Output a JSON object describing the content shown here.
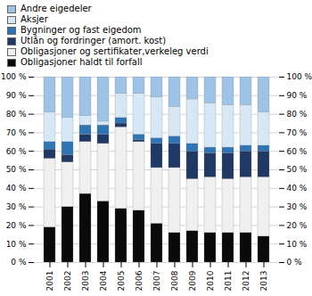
{
  "chart_data": {
    "type": "bar",
    "stacked": true,
    "categories": [
      "2001",
      "2002",
      "2003",
      "2004",
      "2005",
      "2006",
      "2007",
      "2008",
      "2009",
      "2010",
      "2011",
      "2012",
      "2013"
    ],
    "series": [
      {
        "name": "Obligasjoner haldt til forfall",
        "color": "#0a0a0a",
        "values": [
          19,
          30,
          37,
          33,
          29,
          28,
          21,
          16,
          17,
          16,
          16,
          16,
          14
        ]
      },
      {
        "name": "Obligasjoner og sertifikater,verkeleg verdi",
        "color": "#f0f0f0",
        "values": [
          37,
          24,
          28,
          31,
          44,
          37,
          30,
          35,
          28,
          30,
          29,
          30,
          32
        ]
      },
      {
        "name": "Utlån og fordringer (amort. kost)",
        "color": "#1f3864",
        "values": [
          5,
          4,
          4,
          5,
          2,
          1,
          13,
          13,
          15,
          13,
          14,
          14,
          14
        ]
      },
      {
        "name": "Bygninger og fast eigedom",
        "color": "#2e75b6",
        "values": [
          4,
          7,
          5,
          5,
          3,
          3,
          3,
          4,
          4,
          3,
          3,
          3,
          3
        ]
      },
      {
        "name": "Aksjer",
        "color": "#d6e8f5",
        "values": [
          16,
          13,
          5,
          2,
          13,
          22,
          22,
          16,
          24,
          24,
          23,
          22,
          18
        ]
      },
      {
        "name": "Andre eigedeler",
        "color": "#9dc3e6",
        "values": [
          19,
          22,
          21,
          24,
          9,
          9,
          11,
          16,
          12,
          14,
          15,
          15,
          19
        ]
      }
    ],
    "ylim": [
      0,
      100
    ],
    "yticks": [
      {
        "value": 0,
        "label": "0 %"
      },
      {
        "value": 10,
        "label": "10 %"
      },
      {
        "value": 20,
        "label": "20 %"
      },
      {
        "value": 30,
        "label": "30 %"
      },
      {
        "value": 40,
        "label": "40 %"
      },
      {
        "value": 50,
        "label": "50 %"
      },
      {
        "value": 60,
        "label": "60 %"
      },
      {
        "value": 70,
        "label": "70 %"
      },
      {
        "value": 80,
        "label": "80 %"
      },
      {
        "value": 90,
        "label": "90 %"
      },
      {
        "value": 100,
        "label": "100 %"
      }
    ],
    "y2lim": [
      0,
      100
    ],
    "y2ticks": [
      {
        "value": 0,
        "label": "0 %"
      },
      {
        "value": 10,
        "label": "10 %"
      },
      {
        "value": 20,
        "label": "20 %"
      },
      {
        "value": 30,
        "label": "30 %"
      },
      {
        "value": 40,
        "label": "40 %"
      },
      {
        "value": 50,
        "label": "50 %"
      },
      {
        "value": 60,
        "label": "60 %"
      },
      {
        "value": 70,
        "label": "70 %"
      },
      {
        "value": 80,
        "label": "80 %"
      },
      {
        "value": 90,
        "label": "90 %"
      },
      {
        "value": 100,
        "label": "100 %"
      }
    ],
    "grid": true,
    "legend": "top"
  }
}
